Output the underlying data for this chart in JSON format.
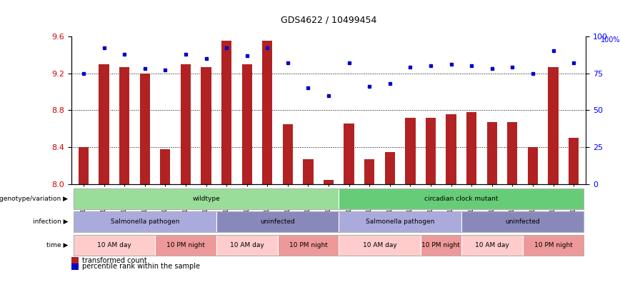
{
  "title": "GDS4622 / 10499454",
  "samples": [
    "GSM1129094",
    "GSM1129095",
    "GSM1129096",
    "GSM1129097",
    "GSM1129098",
    "GSM1129099",
    "GSM1129100",
    "GSM1129082",
    "GSM1129083",
    "GSM1129084",
    "GSM1129085",
    "GSM1129086",
    "GSM1129087",
    "GSM1129101",
    "GSM1129102",
    "GSM1129103",
    "GSM1129104",
    "GSM1129105",
    "GSM1129106",
    "GSM1129088",
    "GSM1129089",
    "GSM1129090",
    "GSM1129091",
    "GSM1129092",
    "GSM1129093"
  ],
  "red_values": [
    8.4,
    9.3,
    9.27,
    9.2,
    8.38,
    9.3,
    9.27,
    9.55,
    9.3,
    9.55,
    8.65,
    8.27,
    8.05,
    8.66,
    8.27,
    8.35,
    8.72,
    8.72,
    8.76,
    8.78,
    8.67,
    8.67,
    8.4,
    9.27,
    8.5
  ],
  "blue_values": [
    75,
    92,
    88,
    78,
    77,
    88,
    85,
    92,
    87,
    92,
    82,
    65,
    60,
    82,
    66,
    68,
    79,
    80,
    81,
    80,
    78,
    79,
    75,
    90,
    82
  ],
  "ylim_left": [
    8.0,
    9.6
  ],
  "ylim_right": [
    0,
    100
  ],
  "yticks_left": [
    8.0,
    8.4,
    8.8,
    9.2,
    9.6
  ],
  "yticks_right": [
    0,
    25,
    50,
    75,
    100
  ],
  "bar_color": "#B22222",
  "dot_color": "#0000CC",
  "genotype_groups": [
    {
      "label": "wildtype",
      "start": 0,
      "end": 13,
      "color": "#99DD99"
    },
    {
      "label": "circadian clock mutant",
      "start": 13,
      "end": 25,
      "color": "#66CC77"
    }
  ],
  "infection_groups": [
    {
      "label": "Salmonella pathogen",
      "start": 0,
      "end": 7,
      "color": "#AAAADD"
    },
    {
      "label": "uninfected",
      "start": 7,
      "end": 13,
      "color": "#8888BB"
    },
    {
      "label": "Salmonella pathogen",
      "start": 13,
      "end": 19,
      "color": "#AAAADD"
    },
    {
      "label": "uninfected",
      "start": 19,
      "end": 25,
      "color": "#8888BB"
    }
  ],
  "time_groups": [
    {
      "label": "10 AM day",
      "start": 0,
      "end": 4,
      "color": "#FFCCCC"
    },
    {
      "label": "10 PM night",
      "start": 4,
      "end": 7,
      "color": "#EE9999"
    },
    {
      "label": "10 AM day",
      "start": 7,
      "end": 10,
      "color": "#FFCCCC"
    },
    {
      "label": "10 PM night",
      "start": 10,
      "end": 13,
      "color": "#EE9999"
    },
    {
      "label": "10 AM day",
      "start": 13,
      "end": 17,
      "color": "#FFCCCC"
    },
    {
      "label": "10 PM night",
      "start": 17,
      "end": 19,
      "color": "#EE9999"
    },
    {
      "label": "10 AM day",
      "start": 19,
      "end": 22,
      "color": "#FFCCCC"
    },
    {
      "label": "10 PM night",
      "start": 22,
      "end": 25,
      "color": "#EE9999"
    }
  ]
}
